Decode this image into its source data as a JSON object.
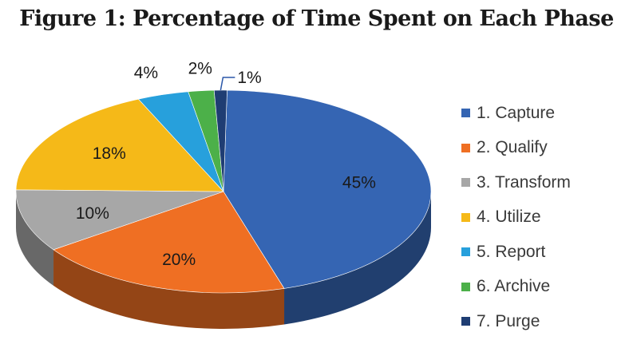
{
  "chart_data": {
    "type": "pie",
    "title": "Figure 1: Percentage of Time Spent on Each Phase",
    "categories": [
      "1. Capture",
      "2. Qualify",
      "3. Transform",
      "4. Utilize",
      "5. Report",
      "6. Archive",
      "7. Purge"
    ],
    "values": [
      45,
      20,
      10,
      18,
      4,
      2,
      1
    ],
    "data_labels": [
      "45%",
      "20%",
      "10%",
      "18%",
      "4%",
      "2%",
      "1%"
    ],
    "colors": [
      "#3565b3",
      "#ef6f23",
      "#a7a7a7",
      "#f5b918",
      "#27a0dc",
      "#4cb049",
      "#1f3d73"
    ],
    "legend_position": "right",
    "style": "3d"
  }
}
